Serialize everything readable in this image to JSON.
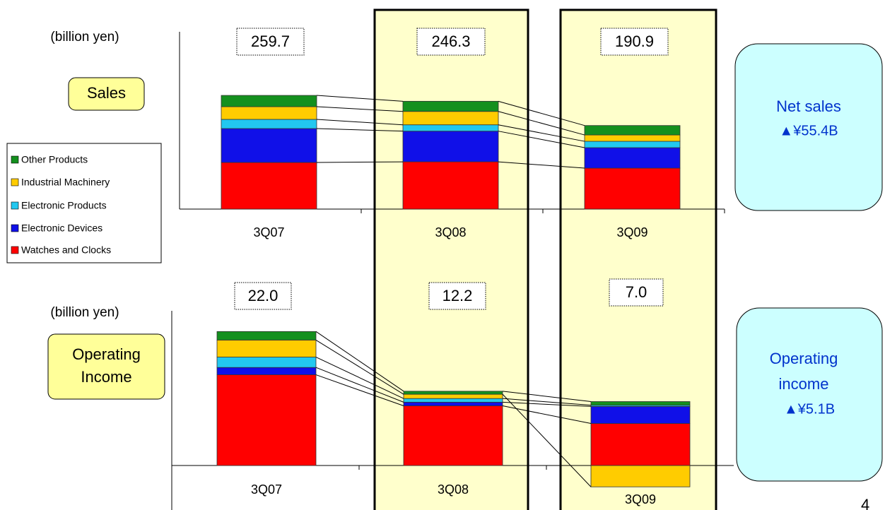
{
  "chart_data": [
    {
      "type": "stacked-bar",
      "axis_label": "(billion yen)",
      "badge": "Sales",
      "categories": [
        "3Q07",
        "3Q08",
        "3Q09"
      ],
      "totals": [
        "259.7",
        "246.3",
        "190.9"
      ],
      "series": [
        {
          "name": "Watches and Clocks",
          "color": "#ff0000",
          "values": [
            106.5,
            108,
            93.5
          ]
        },
        {
          "name": "Electronic Devices",
          "color": "#1010e8",
          "values": [
            77.4,
            70,
            46.8
          ]
        },
        {
          "name": "Electronic Products",
          "color": "#22c8f0",
          "values": [
            21,
            14.5,
            14.5
          ]
        },
        {
          "name": "Industrial Machinery",
          "color": "#ffcc00",
          "values": [
            29,
            30.6,
            14.5
          ]
        },
        {
          "name": "Other Products",
          "color": "#14901e",
          "values": [
            25.8,
            23.2,
            21.6
          ]
        }
      ],
      "ylim": [
        0,
        405
      ],
      "note": {
        "title": "Net sales",
        "change": "▲¥55.4B"
      }
    },
    {
      "type": "stacked-bar",
      "axis_label": "(billion yen)",
      "badge": "Operating Income",
      "categories": [
        "3Q07",
        "3Q08",
        "3Q09"
      ],
      "totals": [
        "22.0",
        "12.2",
        "7.0"
      ],
      "series": [
        {
          "color": "#ff0000",
          "values": [
            14.9,
            9.8,
            6.9
          ]
        },
        {
          "color": "#1010e8",
          "values": [
            1.2,
            0.6,
            2.8
          ]
        },
        {
          "color": "#22c8f0",
          "values": [
            1.7,
            0.6,
            0.2
          ]
        },
        {
          "color": "#ffcc00",
          "values": [
            2.8,
            0.7,
            -3.5
          ]
        },
        {
          "color": "#14901e",
          "values": [
            1.4,
            0.5,
            0.6
          ]
        }
      ],
      "ylim": [
        -7.3,
        25.4
      ],
      "note": {
        "title": "Operating income",
        "change": "▲¥5.1B"
      }
    }
  ],
  "page_number": "4"
}
